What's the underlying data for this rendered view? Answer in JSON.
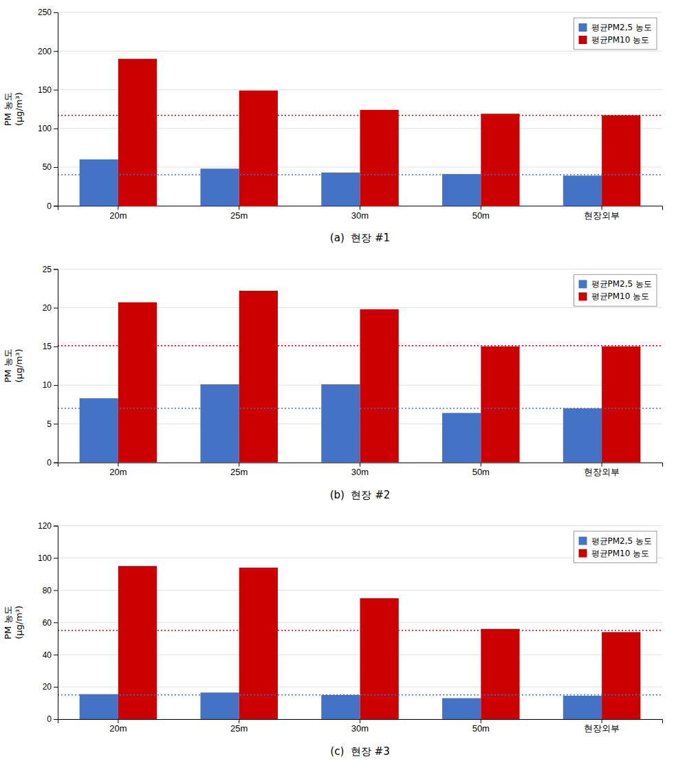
{
  "chart_data": [
    {
      "type": "bar",
      "title": "(a)  현장 #1",
      "ylabel": "PM 농도\n(μg/m³)",
      "categories": [
        "20m",
        "25m",
        "30m",
        "50m",
        "현장외부"
      ],
      "series": [
        {
          "name": "평균PM2,5 농도",
          "color": "#4472C4",
          "values": [
            60,
            48,
            43,
            41,
            39
          ]
        },
        {
          "name": "평균PM10 농도",
          "color": "#CC0000",
          "values": [
            190,
            149,
            124,
            119,
            117
          ]
        }
      ],
      "hlines": [
        {
          "value": 117,
          "color": "#CC0000",
          "line_style": "dotted"
        },
        {
          "value": 40,
          "color": "#4472C4",
          "line_style": "dotted"
        }
      ],
      "ylim": [
        0,
        250
      ],
      "yticks": [
        0,
        50,
        100,
        150,
        200,
        250
      ],
      "grid": true,
      "legend": "upper right"
    },
    {
      "type": "bar",
      "title": "(b)  현장 #2",
      "ylabel": "PM 농도\n(μg/m³)",
      "categories": [
        "20m",
        "25m",
        "30m",
        "50m",
        "현장외부"
      ],
      "series": [
        {
          "name": "평균PM2,5 농도",
          "color": "#4472C4",
          "values": [
            8.3,
            10.1,
            10.1,
            6.4,
            7.0
          ]
        },
        {
          "name": "평균PM10 농도",
          "color": "#CC0000",
          "values": [
            20.7,
            22.2,
            19.8,
            15.0,
            15.0
          ]
        }
      ],
      "hlines": [
        {
          "value": 15.1,
          "color": "#CC0000",
          "line_style": "dotted"
        },
        {
          "value": 7.0,
          "color": "#4472C4",
          "line_style": "dotted"
        }
      ],
      "ylim": [
        0,
        25
      ],
      "yticks": [
        0,
        5,
        10,
        15,
        20,
        25
      ],
      "grid": true,
      "legend": "upper right"
    },
    {
      "type": "bar",
      "title": "(c)  현장 #3",
      "ylabel": "PM 농도\n(μg/m³)",
      "categories": [
        "20m",
        "25m",
        "30m",
        "50m",
        "현장외부"
      ],
      "series": [
        {
          "name": "평균PM2,5 농도",
          "color": "#4472C4",
          "values": [
            15.5,
            16.5,
            15.0,
            13.0,
            14.5
          ]
        },
        {
          "name": "평균PM10 농도",
          "color": "#CC0000",
          "values": [
            95,
            94,
            75,
            56,
            54
          ]
        }
      ],
      "hlines": [
        {
          "value": 55,
          "color": "#CC0000",
          "line_style": "dotted"
        },
        {
          "value": 15,
          "color": "#4472C4",
          "line_style": "dotted"
        }
      ],
      "ylim": [
        0,
        120
      ],
      "yticks": [
        0,
        20,
        40,
        60,
        80,
        100,
        120
      ],
      "grid": true,
      "legend": "upper right"
    }
  ]
}
